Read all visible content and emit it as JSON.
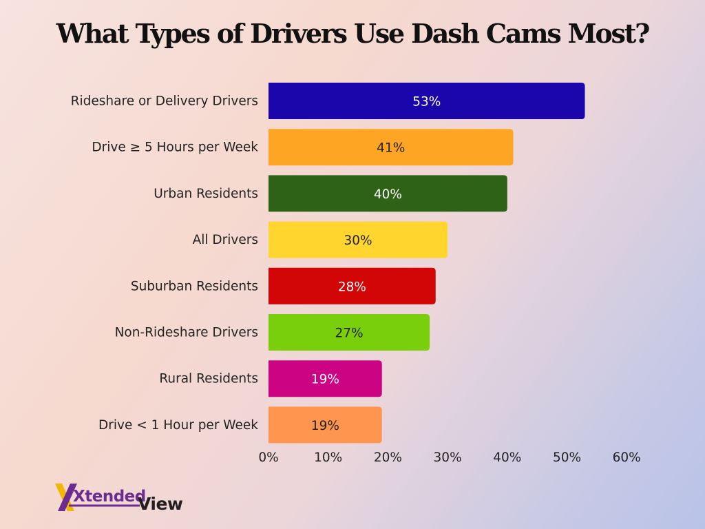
{
  "chart_data": {
    "type": "bar",
    "orientation": "horizontal",
    "title": "What Types of Drivers Use Dash Cams Most?",
    "xlabel": "",
    "ylabel": "",
    "xlim": [
      0,
      60
    ],
    "ticks": [
      "0%",
      "10%",
      "20%",
      "30%",
      "40%",
      "50%",
      "60%"
    ],
    "tick_values": [
      0,
      10,
      20,
      30,
      40,
      50,
      60
    ],
    "grid": false,
    "categories": [
      "Rideshare or Delivery Drivers",
      "Drive ≥ 5 Hours per Week",
      "Urban Residents",
      "All Drivers",
      "Suburban Residents",
      "Non-Rideshare Drivers",
      "Rural Residents",
      "Drive < 1 Hour per Week"
    ],
    "values": [
      53,
      41,
      40,
      30,
      28,
      27,
      19,
      19
    ],
    "value_labels": [
      "53%",
      "41%",
      "40%",
      "30%",
      "28%",
      "27%",
      "19%",
      "19%"
    ],
    "colors": [
      "#1a06aa",
      "#ffa524",
      "#2e6317",
      "#ffd52e",
      "#d20606",
      "#79cf0b",
      "#cc0483",
      "#ff9650"
    ],
    "label_colors": [
      "#ffffff",
      "#222222",
      "#ffffff",
      "#222222",
      "#ffffff",
      "#222222",
      "#ffffff",
      "#222222"
    ]
  },
  "logo": {
    "text_part1": "Xtended",
    "text_part2": "View",
    "colors": {
      "purple": "#6a2c91",
      "gold": "#f2b705",
      "dark": "#231f20"
    }
  }
}
